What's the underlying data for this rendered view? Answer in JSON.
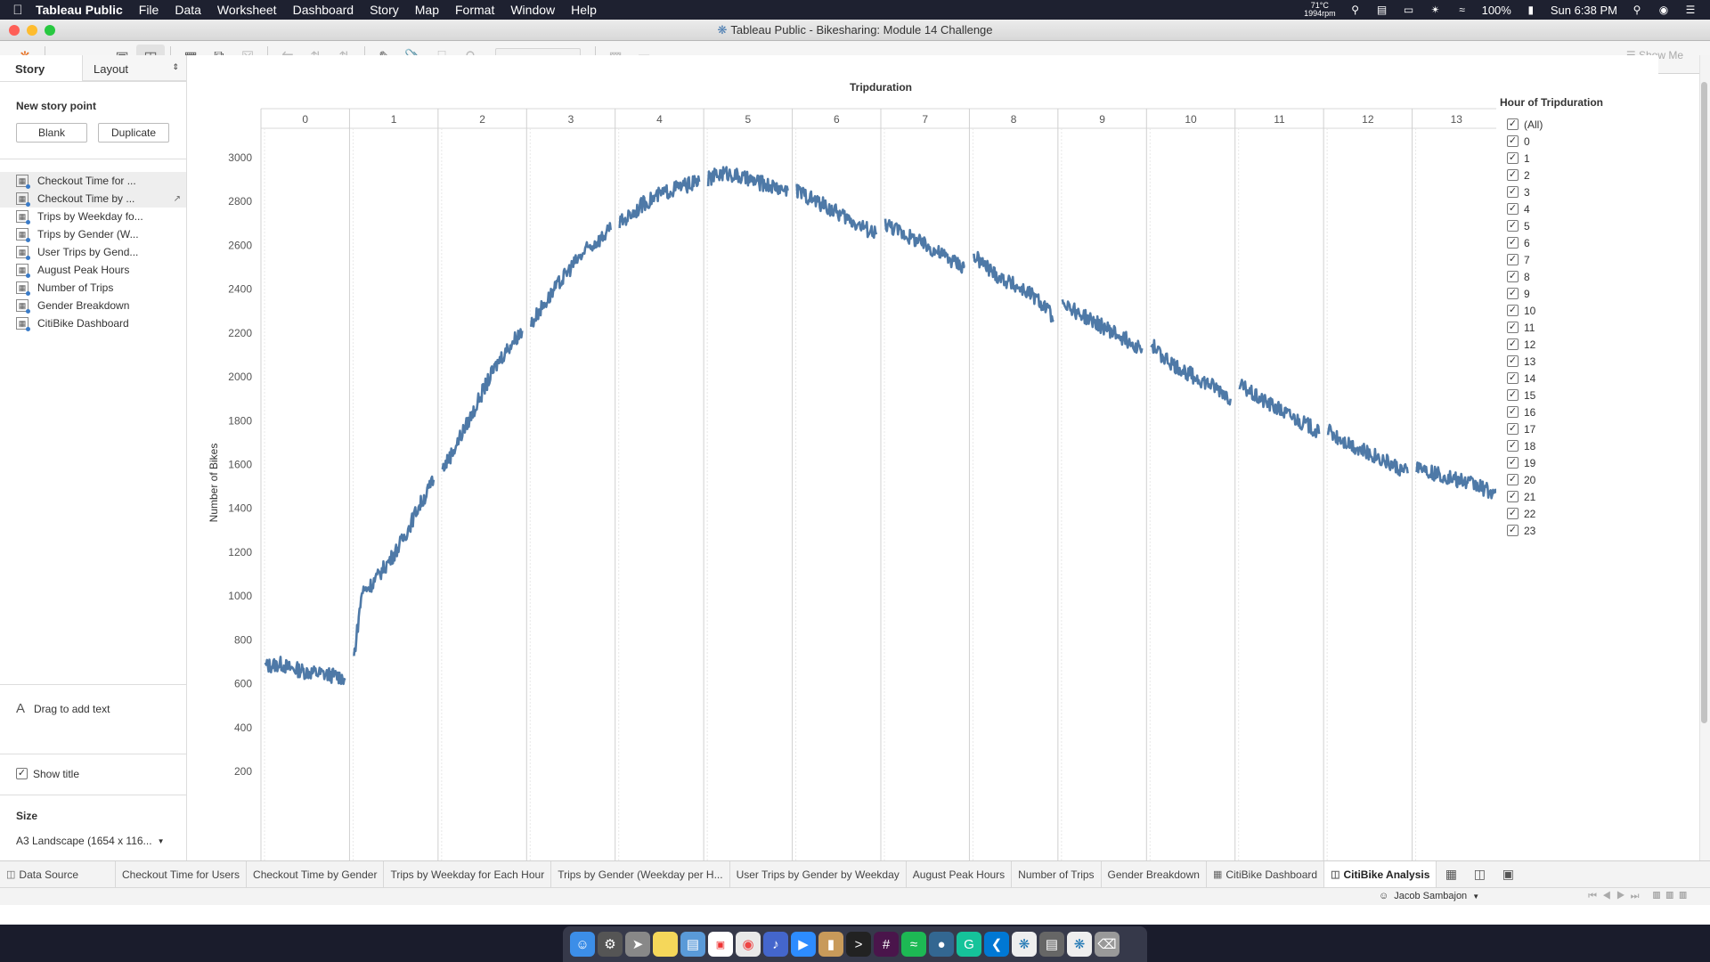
{
  "menubar": {
    "app_name": "Tableau Public",
    "menus": [
      "File",
      "Data",
      "Worksheet",
      "Dashboard",
      "Story",
      "Map",
      "Format",
      "Window",
      "Help"
    ],
    "temp": "71°C",
    "fan": "1994rpm",
    "battery": "100%",
    "clock": "Sun 6:38 PM"
  },
  "window": {
    "title": "Tableau Public - Bikesharing: Module 14 Challenge"
  },
  "toolbar": {
    "show_me": "Show Me"
  },
  "left_pane": {
    "tab_story": "Story",
    "tab_layout": "Layout",
    "new_story_point": "New story point",
    "blank_btn": "Blank",
    "duplicate_btn": "Duplicate",
    "sheets": [
      {
        "label": "Checkout Time for ..."
      },
      {
        "label": "Checkout Time by ..."
      },
      {
        "label": "Trips by Weekday fo..."
      },
      {
        "label": "Trips by Gender (W..."
      },
      {
        "label": "User Trips by Gend..."
      },
      {
        "label": "August Peak Hours"
      },
      {
        "label": "Number of Trips"
      },
      {
        "label": "Gender Breakdown"
      },
      {
        "label": "CitiBike Dashboard"
      }
    ],
    "drag_text": "Drag to add text",
    "show_title": "Show title",
    "size_label": "Size",
    "size_value": "A3 Landscape (1654 x 116..."
  },
  "chart_data": {
    "type": "line",
    "title": "",
    "top_header": "Tripduration",
    "panels": [
      "0",
      "1",
      "2",
      "3",
      "4",
      "5",
      "6",
      "7",
      "8",
      "9",
      "10",
      "11",
      "12",
      "13"
    ],
    "ylabel": "Number of Bikes",
    "ylim": [
      200,
      3100
    ],
    "yticks": [
      200,
      400,
      600,
      800,
      1000,
      1200,
      1400,
      1600,
      1800,
      2000,
      2200,
      2400,
      2600,
      2800,
      3000
    ],
    "color": "#4e79a7",
    "series": [
      {
        "panel": "0",
        "values": [
          680,
          685,
          690,
          670,
          665,
          655,
          650,
          645,
          640,
          635,
          625
        ]
      },
      {
        "panel": "1",
        "values": [
          720,
          1020,
          1045,
          1090,
          1140,
          1190,
          1250,
          1320,
          1400,
          1460,
          1530
        ]
      },
      {
        "panel": "2",
        "values": [
          1580,
          1640,
          1710,
          1780,
          1850,
          1930,
          2000,
          2070,
          2120,
          2170,
          2210
        ]
      },
      {
        "panel": "3",
        "values": [
          2240,
          2300,
          2350,
          2400,
          2450,
          2500,
          2540,
          2580,
          2610,
          2640,
          2670
        ]
      },
      {
        "panel": "4",
        "values": [
          2700,
          2730,
          2760,
          2790,
          2810,
          2830,
          2845,
          2860,
          2870,
          2880,
          2890
        ]
      },
      {
        "panel": "5",
        "values": [
          2900,
          2920,
          2930,
          2925,
          2910,
          2900,
          2890,
          2880,
          2870,
          2860,
          2850
        ]
      },
      {
        "panel": "6",
        "values": [
          2850,
          2830,
          2810,
          2790,
          2770,
          2750,
          2730,
          2710,
          2690,
          2670,
          2650
        ]
      },
      {
        "panel": "7",
        "values": [
          2700,
          2680,
          2660,
          2640,
          2620,
          2600,
          2580,
          2560,
          2540,
          2520,
          2500
        ]
      },
      {
        "panel": "8",
        "values": [
          2550,
          2520,
          2490,
          2460,
          2440,
          2420,
          2400,
          2380,
          2350,
          2320,
          2260
        ]
      },
      {
        "panel": "9",
        "values": [
          2350,
          2320,
          2290,
          2270,
          2250,
          2230,
          2210,
          2190,
          2170,
          2150,
          2130
        ]
      },
      {
        "panel": "10",
        "values": [
          2150,
          2110,
          2080,
          2050,
          2030,
          2010,
          1990,
          1970,
          1950,
          1930,
          1900
        ]
      },
      {
        "panel": "11",
        "values": [
          1960,
          1940,
          1910,
          1890,
          1870,
          1850,
          1830,
          1810,
          1790,
          1770,
          1740
        ]
      },
      {
        "panel": "12",
        "values": [
          1760,
          1730,
          1710,
          1690,
          1670,
          1650,
          1640,
          1620,
          1600,
          1580,
          1560
        ]
      },
      {
        "panel": "13",
        "values": [
          1600,
          1580,
          1560,
          1550,
          1540,
          1530,
          1520,
          1510,
          1500,
          1480,
          1470
        ]
      }
    ]
  },
  "legend": {
    "title": "Hour of Tripduration",
    "items": [
      "(All)",
      "0",
      "1",
      "2",
      "3",
      "4",
      "5",
      "6",
      "7",
      "8",
      "9",
      "10",
      "11",
      "12",
      "13",
      "14",
      "15",
      "16",
      "17",
      "18",
      "19",
      "20",
      "21",
      "22",
      "23"
    ]
  },
  "tabs": [
    {
      "label": "Data Source",
      "icon": "database-icon"
    },
    {
      "label": "Checkout Time for Users"
    },
    {
      "label": "Checkout Time by Gender"
    },
    {
      "label": "Trips by Weekday for Each Hour"
    },
    {
      "label": "Trips by Gender (Weekday per H..."
    },
    {
      "label": "User Trips by Gender by Weekday"
    },
    {
      "label": "August Peak Hours"
    },
    {
      "label": "Number of Trips"
    },
    {
      "label": "Gender Breakdown"
    },
    {
      "label": "CitiBike Dashboard",
      "icon": "dashboard-icon"
    },
    {
      "label": "CitiBike Analysis",
      "icon": "story-icon",
      "active": true
    }
  ],
  "status": {
    "user": "Jacob Sambajon"
  }
}
